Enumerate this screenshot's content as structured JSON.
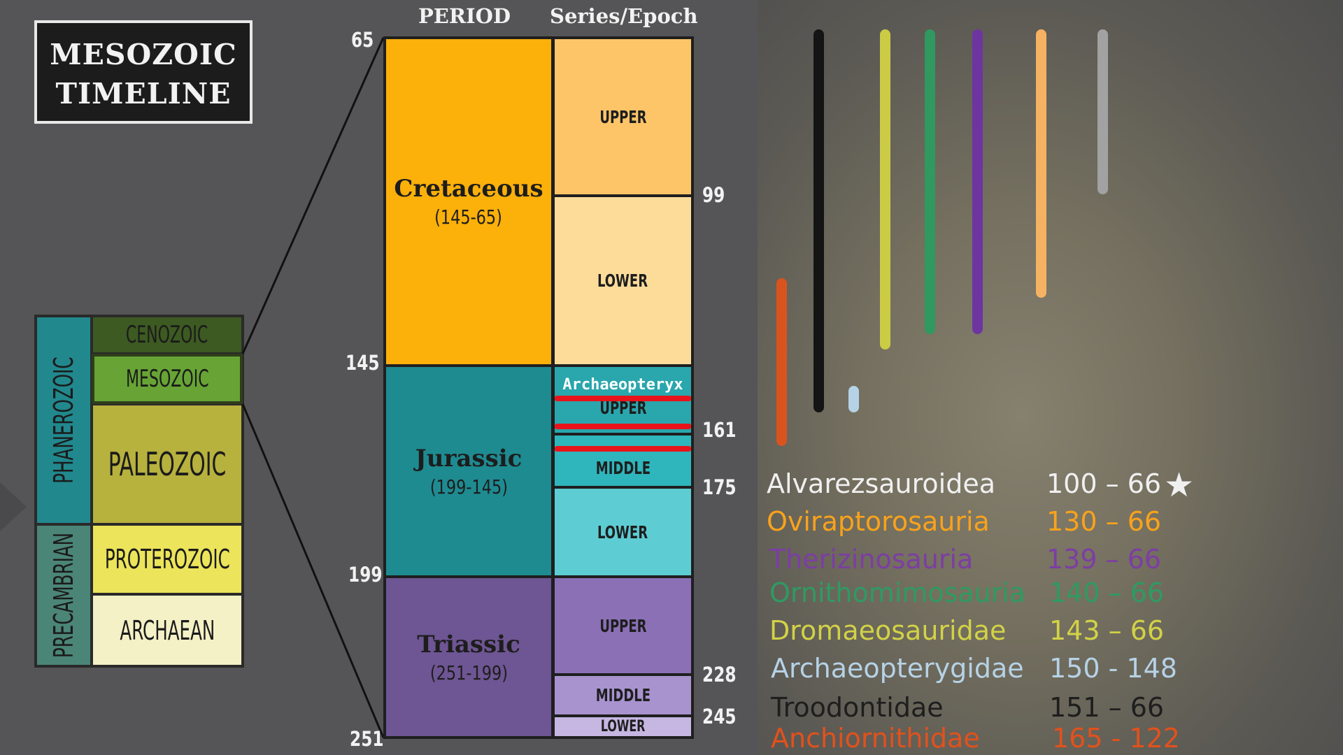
{
  "title": {
    "line1": "MESOZOIC",
    "line2": "TIMELINE"
  },
  "headers": {
    "period": "PERIOD",
    "epoch": "Series/Epoch"
  },
  "eons": {
    "phanerozoic": "PHANEROZOIC",
    "precambrian": "PRECAMBRIAN",
    "eras": [
      "CENOZOIC",
      "MESOZOIC",
      "PALEOZOIC",
      "PROTEROZOIC",
      "ARCHAEAN"
    ]
  },
  "periods": [
    {
      "name": "Cretaceous",
      "range": "(145-65)",
      "color": "#fbb00a"
    },
    {
      "name": "Jurassic",
      "range": "(199-145)",
      "color": "#1e8b91"
    },
    {
      "name": "Triassic",
      "range": "(251-199)",
      "color": "#6e5593"
    }
  ],
  "epochs": {
    "cretaceous": [
      "UPPER",
      "LOWER"
    ],
    "jurassic": [
      "UPPER",
      "MIDDLE",
      "LOWER"
    ],
    "triassic": [
      "UPPER",
      "MIDDLE",
      "LOWER"
    ]
  },
  "ticks": [
    "65",
    "99",
    "145",
    "161",
    "175",
    "199",
    "228",
    "245",
    "251"
  ],
  "annotation": "Archaeopteryx",
  "legend": [
    {
      "name": "Alvarezsauroidea",
      "range": "100 – 66",
      "star": "★",
      "color": "#f0f0f0"
    },
    {
      "name": "Oviraptorosauria",
      "range": "130 – 66",
      "color": "#f8a21c"
    },
    {
      "name": "Therizinosauria",
      "range": "139 – 66",
      "color": "#7c3ea3"
    },
    {
      "name": "Ornithomimosauria",
      "range": "140 – 66",
      "color": "#2f9a62"
    },
    {
      "name": "Dromaeosauridae",
      "range": "143 – 66",
      "color": "#d2d247"
    },
    {
      "name": "Archaeopterygidae",
      "range": "150 - 148",
      "color": "#b6d2e6"
    },
    {
      "name": "Troodontidae",
      "range": "151 – 66",
      "color": "#1e1e1e"
    },
    {
      "name": "Anchiornithidae",
      "range": "165 - 122",
      "color": "#e2511c"
    }
  ],
  "bar_colors": {
    "anchiornithidae": "#d9531f",
    "troodontidae": "#141414",
    "archaeopterygidae": "#b6d2e6",
    "dromaeosauridae": "#cbcb45",
    "ornithomimosauria": "#2f9960",
    "therizinosauria": "#6e35a0",
    "oviraptorosauria": "#f5b263",
    "alvarezsauroidea": "#a2a2a2"
  }
}
